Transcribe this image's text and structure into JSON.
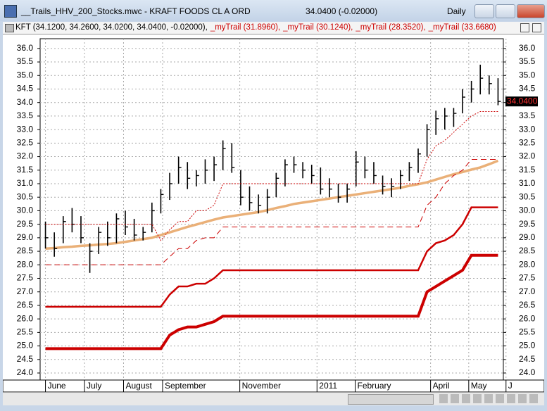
{
  "window": {
    "title": "__Trails_HHV_200_Stocks.mwc - KRAFT FOODS CL A ORD",
    "quote": "34.0400 (-0.02000)",
    "interval": "Daily"
  },
  "chart_data": {
    "type": "ohlc",
    "series": [
      {
        "name": "KFT (34.1200, 34.2600, 34.0200, 34.0400, -0.02000),",
        "color": "#000000",
        "high": [
          29.6,
          29.2,
          29.8,
          30.1,
          29.8,
          28.8,
          29.4,
          29.6,
          29.9,
          30.0,
          29.7,
          29.4,
          30.3,
          30.8,
          31.4,
          32.0,
          31.8,
          31.5,
          31.9,
          32.0,
          32.6,
          32.5,
          31.5,
          30.9,
          30.6,
          30.8,
          31.4,
          31.9,
          32.0,
          31.8,
          31.7,
          31.6,
          31.2,
          31.0,
          31.0,
          32.2,
          32.0,
          31.8,
          31.3,
          31.2,
          31.5,
          31.8,
          32.3,
          33.2,
          33.7,
          33.8,
          33.8,
          34.5,
          34.8,
          35.4,
          35.0,
          34.9
        ],
        "low": [
          28.6,
          28.3,
          28.8,
          29.2,
          28.8,
          27.7,
          28.4,
          28.7,
          28.8,
          29.1,
          28.9,
          28.9,
          29.2,
          29.9,
          30.4,
          31.0,
          30.8,
          30.9,
          31.0,
          31.1,
          31.5,
          31.4,
          30.2,
          30.0,
          29.9,
          29.9,
          30.5,
          30.9,
          31.4,
          31.2,
          31.0,
          30.6,
          30.5,
          30.3,
          30.3,
          30.9,
          31.2,
          31.0,
          30.6,
          30.5,
          30.8,
          31.1,
          31.4,
          32.0,
          32.8,
          33.0,
          33.1,
          33.6,
          34.0,
          34.3,
          34.3,
          33.9
        ],
        "close": [
          29.0,
          28.6,
          29.6,
          29.5,
          29.0,
          28.5,
          29.2,
          29.0,
          29.7,
          29.4,
          29.1,
          29.2,
          30.0,
          30.6,
          31.0,
          31.6,
          31.2,
          31.3,
          31.5,
          31.7,
          32.3,
          31.6,
          30.5,
          30.3,
          30.2,
          30.5,
          31.2,
          31.7,
          31.7,
          31.5,
          31.3,
          30.8,
          30.8,
          30.5,
          30.8,
          31.8,
          31.5,
          31.3,
          30.9,
          30.9,
          31.3,
          31.6,
          32.1,
          33.0,
          33.4,
          33.5,
          33.6,
          34.2,
          34.5,
          34.9,
          34.7,
          34.04
        ]
      },
      {
        "name": "_myTrail (31.8960),",
        "color": "#cc0000",
        "dash": "8 5",
        "width": 1,
        "values": [
          28.0,
          28.0,
          28.0,
          28.0,
          28.0,
          28.0,
          28.0,
          28.0,
          28.0,
          28.0,
          28.0,
          28.0,
          28.0,
          28.0,
          28.3,
          28.6,
          28.6,
          28.9,
          29.0,
          29.0,
          29.4,
          29.4,
          29.4,
          29.4,
          29.4,
          29.4,
          29.4,
          29.4,
          29.4,
          29.4,
          29.4,
          29.4,
          29.4,
          29.4,
          29.4,
          29.4,
          29.4,
          29.4,
          29.4,
          29.4,
          29.4,
          29.4,
          29.4,
          30.2,
          30.5,
          31.0,
          31.3,
          31.5,
          31.896,
          31.896,
          31.896,
          31.896
        ]
      },
      {
        "name": "_myTrail (30.1240),",
        "color": "#cc0000",
        "width": 2.5,
        "values": [
          26.45,
          26.45,
          26.45,
          26.45,
          26.45,
          26.45,
          26.45,
          26.45,
          26.45,
          26.45,
          26.45,
          26.45,
          26.45,
          26.45,
          26.9,
          27.2,
          27.2,
          27.3,
          27.3,
          27.5,
          27.8,
          27.8,
          27.8,
          27.8,
          27.8,
          27.8,
          27.8,
          27.8,
          27.8,
          27.8,
          27.8,
          27.8,
          27.8,
          27.8,
          27.8,
          27.8,
          27.8,
          27.8,
          27.8,
          27.8,
          27.8,
          27.8,
          27.8,
          28.5,
          28.8,
          28.9,
          29.1,
          29.5,
          30.124,
          30.124,
          30.124,
          30.124
        ]
      },
      {
        "name": "_myTrail (28.3520),",
        "color": "#cc0000",
        "width": 4,
        "values": [
          24.9,
          24.9,
          24.9,
          24.9,
          24.9,
          24.9,
          24.9,
          24.9,
          24.9,
          24.9,
          24.9,
          24.9,
          24.9,
          24.9,
          25.4,
          25.6,
          25.7,
          25.7,
          25.8,
          25.9,
          26.1,
          26.1,
          26.1,
          26.1,
          26.1,
          26.1,
          26.1,
          26.1,
          26.1,
          26.1,
          26.1,
          26.1,
          26.1,
          26.1,
          26.1,
          26.1,
          26.1,
          26.1,
          26.1,
          26.1,
          26.1,
          26.1,
          26.1,
          27.0,
          27.2,
          27.4,
          27.6,
          27.8,
          28.352,
          28.352,
          28.352,
          28.352
        ]
      },
      {
        "name": "_myTrail (33.6680)",
        "color": "#cc0000",
        "dash": "2 2",
        "width": 1,
        "values": [
          29.5,
          29.5,
          29.5,
          29.5,
          29.5,
          29.5,
          29.5,
          29.5,
          29.5,
          29.5,
          29.5,
          29.5,
          29.5,
          28.9,
          29.3,
          29.6,
          29.6,
          30.0,
          30.0,
          30.2,
          31.0,
          31.0,
          31.0,
          31.0,
          31.0,
          31.0,
          31.0,
          31.0,
          31.0,
          31.0,
          31.0,
          31.0,
          31.0,
          31.0,
          31.0,
          31.0,
          31.0,
          31.0,
          31.0,
          31.0,
          31.0,
          31.0,
          31.0,
          31.9,
          32.4,
          32.6,
          32.9,
          33.2,
          33.5,
          33.668,
          33.668,
          33.668
        ]
      }
    ],
    "ma": {
      "color": "#eab078",
      "values": [
        28.6,
        28.62,
        28.65,
        28.67,
        28.7,
        28.72,
        28.75,
        28.77,
        28.8,
        28.85,
        28.9,
        28.95,
        29.0,
        29.1,
        29.2,
        29.3,
        29.4,
        29.49,
        29.58,
        29.67,
        29.75,
        29.8,
        29.85,
        29.9,
        29.95,
        30.02,
        30.1,
        30.17,
        30.25,
        30.3,
        30.35,
        30.4,
        30.45,
        30.5,
        30.55,
        30.6,
        30.65,
        30.7,
        30.75,
        30.8,
        30.85,
        30.92,
        30.98,
        31.05,
        31.15,
        31.25,
        31.35,
        31.43,
        31.52,
        31.6,
        31.72,
        31.85
      ]
    },
    "price_label": {
      "value": 34.04,
      "label": "34.0400"
    },
    "xlim": [
      -0.6,
      51.6
    ],
    "xticks": [
      {
        "value": 0,
        "label": "June"
      },
      {
        "value": 4.4,
        "label": "July"
      },
      {
        "value": 8.8,
        "label": "August"
      },
      {
        "value": 13.2,
        "label": "September"
      },
      {
        "value": 21.9,
        "label": "November"
      },
      {
        "value": 30.6,
        "label": "2011"
      },
      {
        "value": 34.9,
        "label": "February"
      },
      {
        "value": 43.4,
        "label": "April"
      },
      {
        "value": 47.7,
        "label": "May"
      },
      {
        "value": 51.9,
        "label": "J"
      }
    ],
    "ylim": [
      23.74,
      36.36
    ],
    "yticks": [
      {
        "value": 24,
        "label": "24.0"
      },
      {
        "value": 24.5,
        "label": "24.5"
      },
      {
        "value": 25,
        "label": "25.0"
      },
      {
        "value": 25.5,
        "label": "25.5"
      },
      {
        "value": 26,
        "label": "26.0"
      },
      {
        "value": 26.5,
        "label": "26.5"
      },
      {
        "value": 27,
        "label": "27.0"
      },
      {
        "value": 27.5,
        "label": "27.5"
      },
      {
        "value": 28,
        "label": "28.0"
      },
      {
        "value": 28.5,
        "label": "28.5"
      },
      {
        "value": 29,
        "label": "29.0"
      },
      {
        "value": 29.5,
        "label": "29.5"
      },
      {
        "value": 30,
        "label": "30.0"
      },
      {
        "value": 30.5,
        "label": "30.5"
      },
      {
        "value": 31,
        "label": "31.0"
      },
      {
        "value": 31.5,
        "label": "31.5"
      },
      {
        "value": 32,
        "label": "32.0"
      },
      {
        "value": 32.5,
        "label": "32.5"
      },
      {
        "value": 33,
        "label": "33.0"
      },
      {
        "value": 33.5,
        "label": "33.5"
      },
      {
        "value": 34,
        "label": "34.0"
      },
      {
        "value": 34.5,
        "label": "34.5"
      },
      {
        "value": 35,
        "label": "35.0"
      },
      {
        "value": 35.5,
        "label": "35.5"
      },
      {
        "value": 36,
        "label": "36.0"
      }
    ],
    "grid": true
  }
}
